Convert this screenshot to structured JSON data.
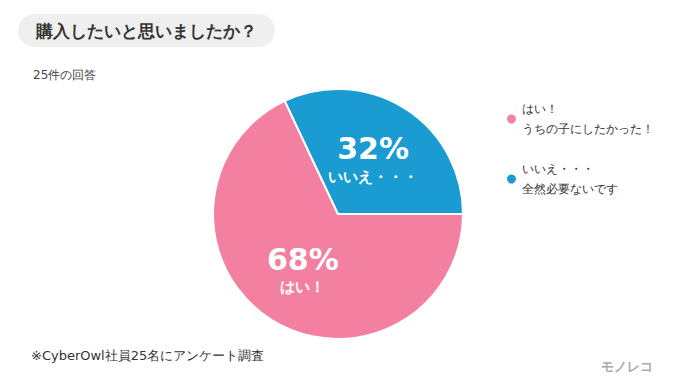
{
  "chart_data": {
    "type": "pie",
    "title": "購入したいと思いましたか？",
    "subtitle": "25件の回答",
    "categories": [
      "はい！",
      "いいえ・・・"
    ],
    "legend_descriptions": [
      "うちの子にしたかった！",
      "全然必要ないです"
    ],
    "values": [
      68,
      32
    ],
    "value_labels": [
      "68%",
      "32%"
    ],
    "colors": [
      "#f480a1",
      "#1a9bd2"
    ],
    "data_labels": true,
    "legend": "right",
    "note": "※CyberOwl社員25名にアンケート調査",
    "brand": "モノレコ"
  }
}
